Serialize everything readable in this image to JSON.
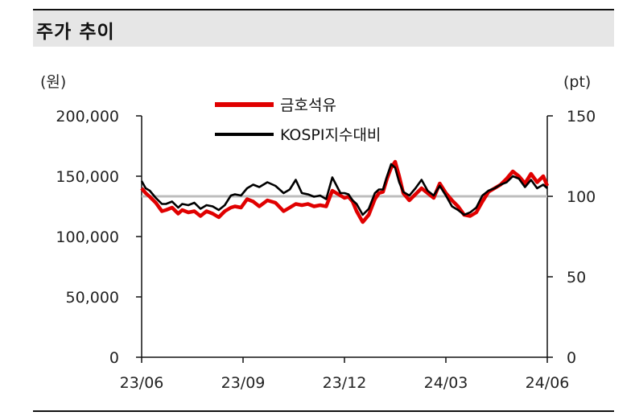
{
  "header": {
    "title": "주가 추이"
  },
  "chart_data": {
    "type": "line",
    "left_unit": "(원)",
    "right_unit": "(pt)",
    "left_axis": {
      "ticks": [
        "200,000",
        "150,000",
        "100,000",
        "50,000",
        "0"
      ],
      "values": [
        200000,
        150000,
        100000,
        50000,
        0
      ],
      "ylim": [
        0,
        200000
      ]
    },
    "right_axis": {
      "ticks": [
        "150",
        "100",
        "50",
        "0"
      ],
      "values": [
        150,
        100,
        50,
        0
      ],
      "ylim": [
        0,
        150
      ]
    },
    "x_ticks": [
      "23/06",
      "23/09",
      "23/12",
      "24/03",
      "24/06"
    ],
    "reference_line": {
      "axis": "right",
      "value": 100,
      "color": "#bdbdbd"
    },
    "legend": {
      "position": "top-center"
    },
    "series": [
      {
        "name": "금호석유",
        "axis": "left",
        "color": "#e00000",
        "x": [
          0,
          0.01,
          0.02,
          0.035,
          0.05,
          0.06,
          0.075,
          0.09,
          0.1,
          0.115,
          0.13,
          0.145,
          0.16,
          0.175,
          0.19,
          0.205,
          0.22,
          0.23,
          0.245,
          0.26,
          0.275,
          0.29,
          0.31,
          0.33,
          0.35,
          0.365,
          0.38,
          0.395,
          0.41,
          0.425,
          0.44,
          0.455,
          0.47,
          0.49,
          0.5,
          0.51,
          0.52,
          0.53,
          0.545,
          0.56,
          0.575,
          0.585,
          0.595,
          0.605,
          0.615,
          0.625,
          0.635,
          0.645,
          0.66,
          0.675,
          0.69,
          0.705,
          0.72,
          0.735,
          0.75,
          0.765,
          0.78,
          0.795,
          0.81,
          0.825,
          0.84,
          0.855,
          0.87,
          0.885,
          0.9,
          0.915,
          0.93,
          0.945,
          0.96,
          0.975,
          0.99,
          1.0
        ],
        "values": [
          140000,
          136000,
          133000,
          128000,
          121000,
          122000,
          124000,
          119000,
          122000,
          120000,
          121000,
          117000,
          121000,
          119000,
          116000,
          121000,
          124000,
          125000,
          124000,
          131000,
          129000,
          125000,
          130000,
          128000,
          121000,
          124000,
          127000,
          126000,
          127000,
          125000,
          126000,
          125000,
          138000,
          134000,
          132000,
          133000,
          129000,
          121000,
          112000,
          118000,
          131000,
          136000,
          137000,
          148000,
          157000,
          162000,
          150000,
          136000,
          130000,
          135000,
          140000,
          136000,
          132000,
          144000,
          136000,
          130000,
          125000,
          118000,
          117000,
          120000,
          129000,
          137000,
          140000,
          143000,
          148000,
          154000,
          150000,
          144000,
          152000,
          145000,
          150000,
          142000
        ]
      },
      {
        "name": "KOSPI지수대비",
        "axis": "left",
        "color": "#000000",
        "x": [
          0,
          0.01,
          0.02,
          0.035,
          0.05,
          0.06,
          0.075,
          0.09,
          0.1,
          0.115,
          0.13,
          0.145,
          0.16,
          0.175,
          0.19,
          0.205,
          0.22,
          0.23,
          0.245,
          0.26,
          0.275,
          0.29,
          0.31,
          0.33,
          0.35,
          0.365,
          0.38,
          0.395,
          0.41,
          0.425,
          0.44,
          0.455,
          0.47,
          0.49,
          0.5,
          0.51,
          0.52,
          0.53,
          0.545,
          0.56,
          0.575,
          0.585,
          0.595,
          0.605,
          0.615,
          0.625,
          0.635,
          0.645,
          0.66,
          0.675,
          0.69,
          0.705,
          0.72,
          0.735,
          0.75,
          0.765,
          0.78,
          0.795,
          0.81,
          0.825,
          0.84,
          0.855,
          0.87,
          0.885,
          0.9,
          0.915,
          0.93,
          0.945,
          0.96,
          0.975,
          0.99,
          1.0
        ],
        "values": [
          146000,
          140000,
          138000,
          132000,
          127000,
          127000,
          129000,
          124000,
          127000,
          126000,
          128000,
          123000,
          126000,
          125000,
          122000,
          126000,
          134000,
          135000,
          134000,
          140000,
          143000,
          141000,
          145000,
          142000,
          136000,
          139000,
          147000,
          136000,
          135000,
          133000,
          134000,
          131000,
          149000,
          136000,
          136000,
          135000,
          130000,
          127000,
          118000,
          123000,
          136000,
          139000,
          139000,
          150000,
          160000,
          157000,
          145000,
          137000,
          134000,
          140000,
          147000,
          138000,
          134000,
          142000,
          134000,
          125000,
          122000,
          118000,
          120000,
          124000,
          134000,
          138000,
          140000,
          143000,
          145000,
          150000,
          148000,
          141000,
          147000,
          140000,
          143000,
          140000
        ]
      }
    ]
  }
}
